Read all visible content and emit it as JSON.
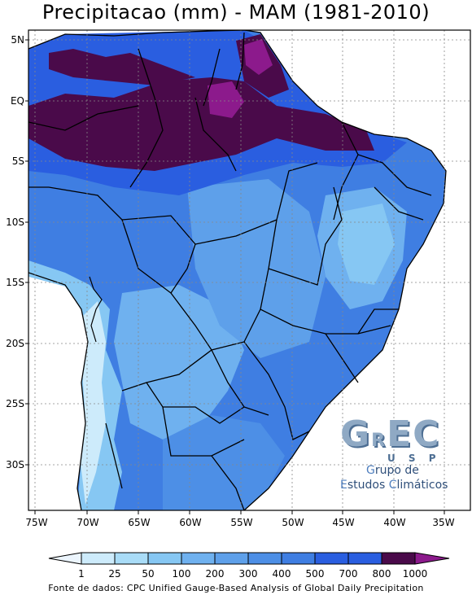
{
  "title": "Precipitacao (mm) - MAM (1981-2010)",
  "source": "Fonte de dados: CPC Unified Gauge-Based Analysis of Global Daily Precipitation",
  "lat_ticks": [
    "5N",
    "EQ",
    "5S",
    "10S",
    "15S",
    "20S",
    "25S",
    "30S"
  ],
  "lon_ticks": [
    "75W",
    "70W",
    "65W",
    "60W",
    "55W",
    "50W",
    "45W",
    "40W",
    "35W"
  ],
  "legend": {
    "labels": [
      "1",
      "25",
      "50",
      "100",
      "200",
      "300",
      "400",
      "500",
      "700",
      "800",
      "1000"
    ],
    "colors": [
      "#ecf5fd",
      "#cdebfb",
      "#a9dcf7",
      "#86c7f3",
      "#6fb1ef",
      "#5ea0ea",
      "#4d8fe6",
      "#3f7ee2",
      "#2a5ee0",
      "#4a0a4a",
      "#8c1a8c"
    ]
  },
  "logo": {
    "big_g": "G",
    "small_r": "R",
    "big_e": "E",
    "big_c": "C",
    "usp": "U S P",
    "line1_cap": "G",
    "line1_rest": "rupo de",
    "line2_cap1": "E",
    "line2_mid": "studos ",
    "line2_cap2": "C",
    "line2_rest": "limáticos"
  }
}
